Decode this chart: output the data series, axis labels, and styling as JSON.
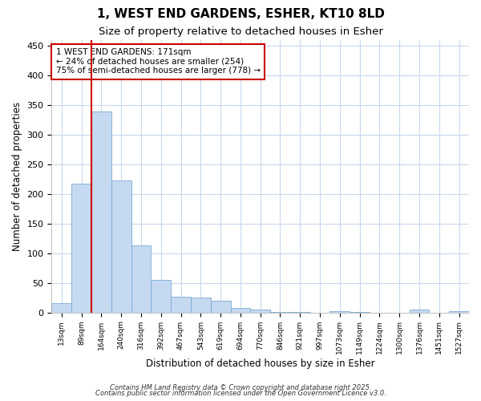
{
  "title_line1": "1, WEST END GARDENS, ESHER, KT10 8LD",
  "title_line2": "Size of property relative to detached houses in Esher",
  "xlabel": "Distribution of detached houses by size in Esher",
  "ylabel": "Number of detached properties",
  "categories": [
    "13sqm",
    "89sqm",
    "164sqm",
    "240sqm",
    "316sqm",
    "392sqm",
    "467sqm",
    "543sqm",
    "619sqm",
    "694sqm",
    "770sqm",
    "846sqm",
    "921sqm",
    "997sqm",
    "1073sqm",
    "1149sqm",
    "1224sqm",
    "1300sqm",
    "1376sqm",
    "1451sqm",
    "1527sqm"
  ],
  "values": [
    16,
    217,
    340,
    223,
    113,
    55,
    26,
    25,
    20,
    7,
    5,
    1,
    1,
    0,
    2,
    1,
    0,
    0,
    5,
    0,
    2
  ],
  "bar_color": "#c5d9f0",
  "bar_edge_color": "#7aabd4",
  "red_line_index": 2,
  "red_line_color": "#cc0000",
  "ylim": [
    0,
    460
  ],
  "yticks": [
    0,
    50,
    100,
    150,
    200,
    250,
    300,
    350,
    400,
    450
  ],
  "annotation_text": "1 WEST END GARDENS: 171sqm\n← 24% of detached houses are smaller (254)\n75% of semi-detached houses are larger (778) →",
  "annotation_box_facecolor": "#ffffff",
  "annotation_box_edgecolor": "#cc0000",
  "footer_line1": "Contains HM Land Registry data © Crown copyright and database right 2025.",
  "footer_line2": "Contains public sector information licensed under the Open Government Licence v3.0.",
  "fig_background": "#ffffff",
  "plot_background": "#ffffff",
  "grid_color": "#c8d8ec"
}
